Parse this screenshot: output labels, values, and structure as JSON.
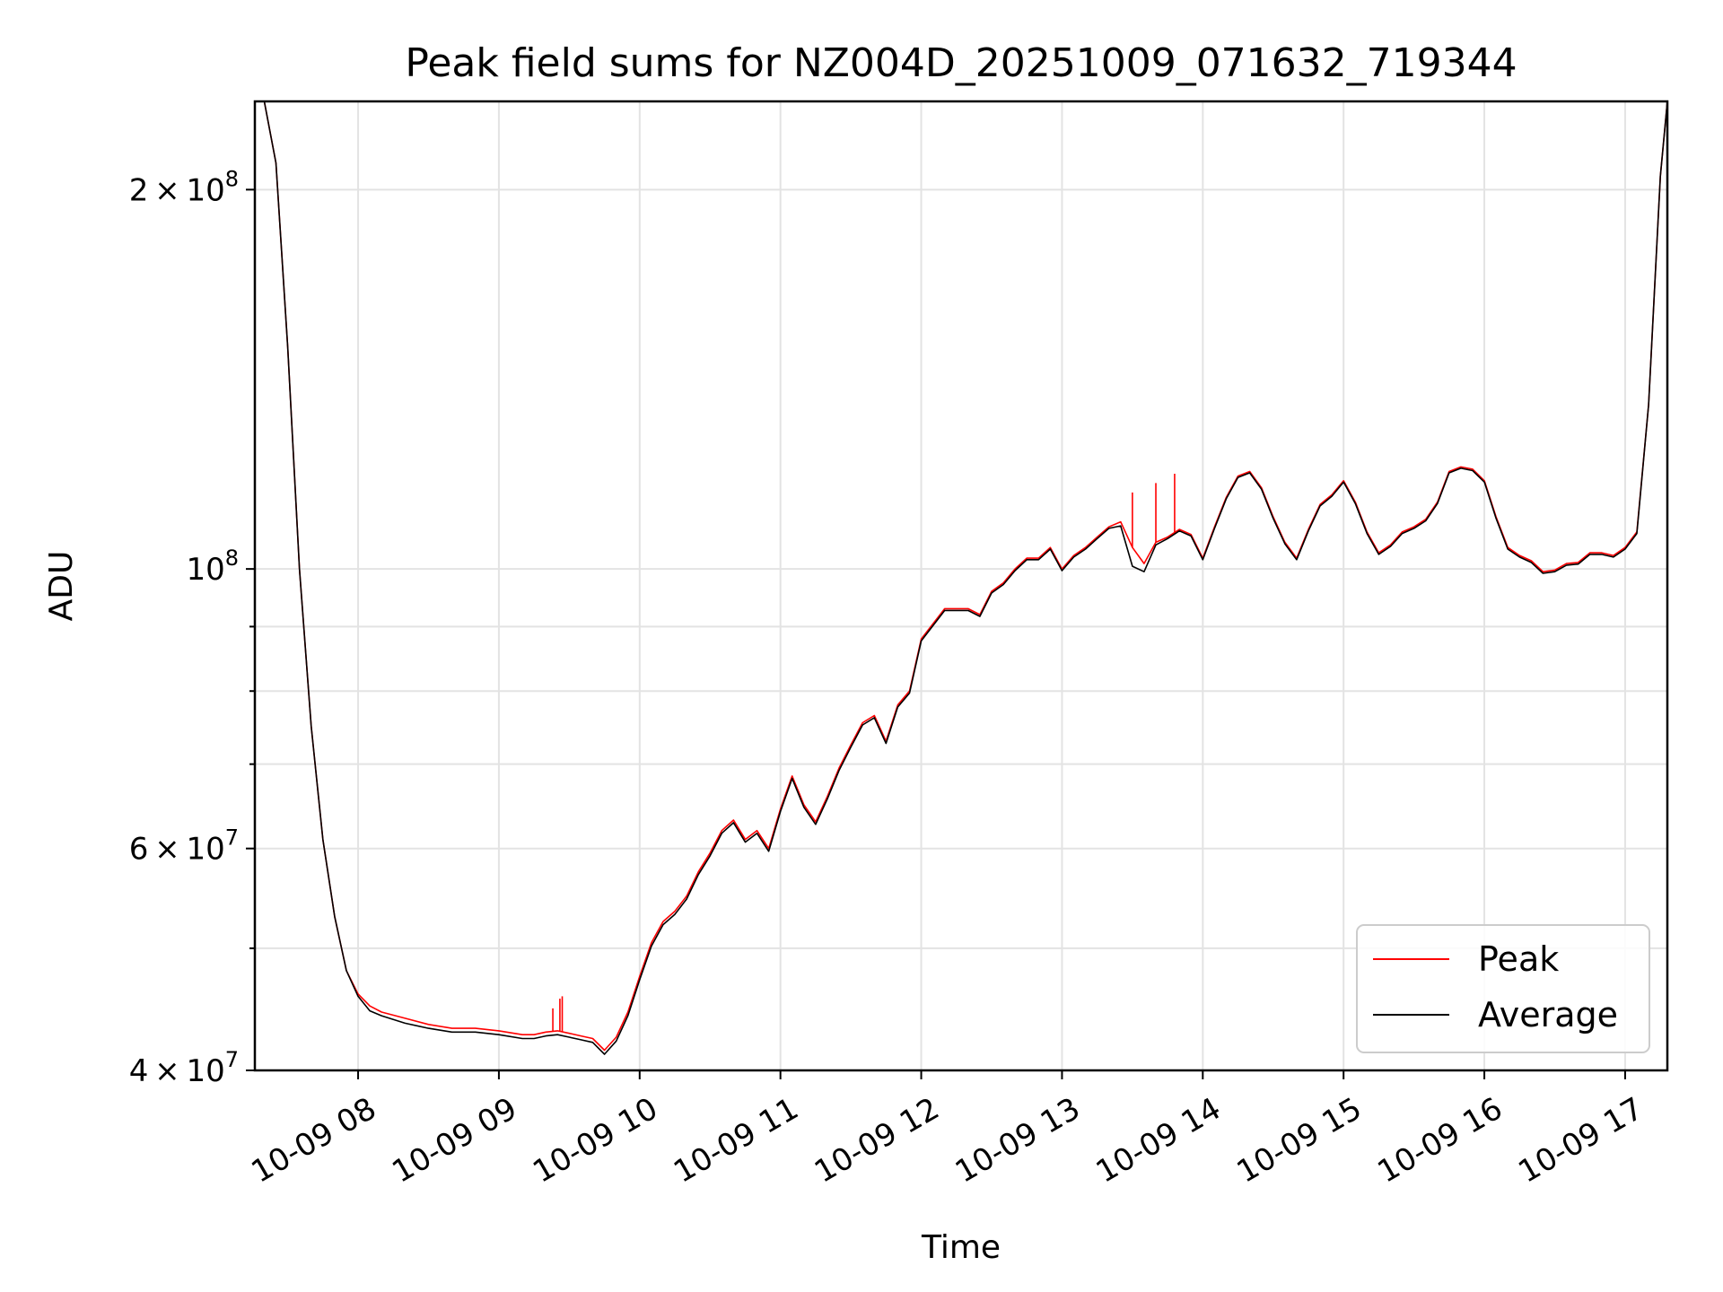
{
  "chart_data": {
    "type": "line",
    "title": "Peak field sums for NZ004D_20251009_071632_719344",
    "xlabel": "Time",
    "ylabel": "ADU",
    "yscale": "log",
    "xlim": [
      "2025-10-09 07:16",
      "2025-10-09 17:18"
    ],
    "ylim": [
      40000000,
      235000000
    ],
    "x_ticks": [
      {
        "value": "2025-10-09 08:00",
        "label": "10-09 08"
      },
      {
        "value": "2025-10-09 09:00",
        "label": "10-09 09"
      },
      {
        "value": "2025-10-09 10:00",
        "label": "10-09 10"
      },
      {
        "value": "2025-10-09 11:00",
        "label": "10-09 11"
      },
      {
        "value": "2025-10-09 12:00",
        "label": "10-09 12"
      },
      {
        "value": "2025-10-09 13:00",
        "label": "10-09 13"
      },
      {
        "value": "2025-10-09 14:00",
        "label": "10-09 14"
      },
      {
        "value": "2025-10-09 15:00",
        "label": "10-09 15"
      },
      {
        "value": "2025-10-09 16:00",
        "label": "10-09 16"
      },
      {
        "value": "2025-10-09 17:00",
        "label": "10-09 17"
      }
    ],
    "y_major_ticks": [
      {
        "value": 40000000,
        "mant": "4",
        "exp": "7"
      },
      {
        "value": 60000000,
        "mant": "6",
        "exp": "7"
      },
      {
        "value": 100000000,
        "mant": "",
        "exp": "8"
      },
      {
        "value": 200000000,
        "mant": "2",
        "exp": "8"
      }
    ],
    "y_minor_ticks": [
      50000000,
      70000000,
      80000000,
      90000000
    ],
    "grid": true,
    "legend_position": "lower-right",
    "x": [
      "07:16",
      "07:20",
      "07:25",
      "07:30",
      "07:35",
      "07:40",
      "07:45",
      "07:50",
      "07:55",
      "08:00",
      "08:05",
      "08:10",
      "08:20",
      "08:30",
      "08:40",
      "08:50",
      "09:00",
      "09:10",
      "09:15",
      "09:20",
      "09:25",
      "09:30",
      "09:35",
      "09:40",
      "09:45",
      "09:50",
      "09:55",
      "10:00",
      "10:05",
      "10:10",
      "10:15",
      "10:20",
      "10:25",
      "10:30",
      "10:35",
      "10:40",
      "10:45",
      "10:50",
      "10:55",
      "11:00",
      "11:05",
      "11:10",
      "11:15",
      "11:20",
      "11:25",
      "11:30",
      "11:35",
      "11:40",
      "11:45",
      "11:50",
      "11:55",
      "12:00",
      "12:10",
      "12:20",
      "12:25",
      "12:30",
      "12:35",
      "12:40",
      "12:45",
      "12:50",
      "12:55",
      "13:00",
      "13:05",
      "13:10",
      "13:15",
      "13:20",
      "13:25",
      "13:30",
      "13:35",
      "13:40",
      "13:45",
      "13:50",
      "13:55",
      "14:00",
      "14:05",
      "14:10",
      "14:15",
      "14:20",
      "14:25",
      "14:30",
      "14:35",
      "14:40",
      "14:45",
      "14:50",
      "14:55",
      "15:00",
      "15:05",
      "15:10",
      "15:15",
      "15:20",
      "15:25",
      "15:30",
      "15:35",
      "15:40",
      "15:45",
      "15:50",
      "15:55",
      "16:00",
      "16:05",
      "16:10",
      "16:15",
      "16:20",
      "16:25",
      "16:30",
      "16:35",
      "16:40",
      "16:45",
      "16:50",
      "16:55",
      "17:00",
      "17:05",
      "17:10",
      "17:15",
      "17:18"
    ],
    "series": [
      {
        "name": "Peak",
        "color": "#ff0000",
        "values": [
          235000000,
          235000000,
          210000000,
          150000000,
          100000000,
          75000000,
          61000000,
          53000000,
          48000000,
          46000000,
          45000000,
          44500000,
          44000000,
          43500000,
          43200000,
          43200000,
          43000000,
          42700000,
          42700000,
          42900000,
          43000000,
          42800000,
          42600000,
          42400000,
          41500000,
          42500000,
          44500000,
          47500000,
          50500000,
          52500000,
          53500000,
          55000000,
          57500000,
          59500000,
          62000000,
          63200000,
          61000000,
          62000000,
          60000000,
          64500000,
          68500000,
          65000000,
          63000000,
          66000000,
          69500000,
          72500000,
          75500000,
          76500000,
          73000000,
          78000000,
          80000000,
          88000000,
          93000000,
          93000000,
          92000000,
          96000000,
          97500000,
          100000000,
          102000000,
          102000000,
          104000000,
          100000000,
          102500000,
          104000000,
          106000000,
          108000000,
          109000000,
          104000000,
          101000000,
          105000000,
          106000000,
          107500000,
          106500000,
          102000000,
          108000000,
          114000000,
          118500000,
          119500000,
          116000000,
          110000000,
          105000000,
          102000000,
          107500000,
          112500000,
          114500000,
          117500000,
          113000000,
          107000000,
          103000000,
          104500000,
          107000000,
          108000000,
          109500000,
          113000000,
          119500000,
          120500000,
          120000000,
          117500000,
          110000000,
          104000000,
          102500000,
          101500000,
          99500000,
          99800000,
          101000000,
          101200000,
          103000000,
          103000000,
          102500000,
          104000000,
          107000000,
          135000000,
          205000000,
          235000000
        ]
      },
      {
        "name": "Average",
        "color": "#000000",
        "values": [
          235000000,
          235000000,
          210000000,
          150000000,
          100000000,
          75000000,
          61000000,
          53000000,
          48000000,
          45800000,
          44600000,
          44200000,
          43600000,
          43200000,
          42900000,
          42900000,
          42700000,
          42400000,
          42400000,
          42600000,
          42700000,
          42500000,
          42300000,
          42100000,
          41200000,
          42200000,
          44200000,
          47200000,
          50200000,
          52200000,
          53200000,
          54700000,
          57200000,
          59200000,
          61700000,
          62900000,
          60700000,
          61700000,
          59700000,
          64200000,
          68200000,
          64700000,
          62700000,
          65700000,
          69200000,
          72200000,
          75200000,
          76200000,
          72700000,
          77700000,
          79700000,
          87700000,
          92700000,
          92700000,
          91700000,
          95700000,
          97200000,
          99700000,
          101700000,
          101700000,
          103700000,
          99700000,
          102200000,
          103700000,
          105700000,
          107700000,
          108200000,
          100500000,
          99500000,
          104500000,
          105700000,
          107200000,
          106200000,
          101700000,
          107700000,
          113700000,
          118200000,
          119200000,
          115700000,
          109700000,
          104700000,
          101700000,
          107200000,
          112200000,
          114200000,
          117200000,
          112700000,
          106700000,
          102700000,
          104200000,
          106700000,
          107700000,
          109200000,
          112700000,
          119200000,
          120200000,
          119700000,
          117200000,
          109700000,
          103700000,
          102200000,
          101200000,
          99200000,
          99500000,
          100700000,
          100900000,
          102700000,
          102700000,
          102200000,
          103700000,
          106700000,
          135000000,
          205000000,
          235000000
        ]
      }
    ],
    "annotations": [
      {
        "series": "Peak",
        "x": "09:23",
        "value": 44800000
      },
      {
        "series": "Peak",
        "x": "09:26",
        "value": 45600000
      },
      {
        "series": "Peak",
        "x": "09:27",
        "value": 45800000
      },
      {
        "series": "Peak",
        "x": "13:30",
        "value": 115000000
      },
      {
        "series": "Peak",
        "x": "13:40",
        "value": 117000000
      },
      {
        "series": "Peak",
        "x": "13:48",
        "value": 119000000
      }
    ]
  }
}
